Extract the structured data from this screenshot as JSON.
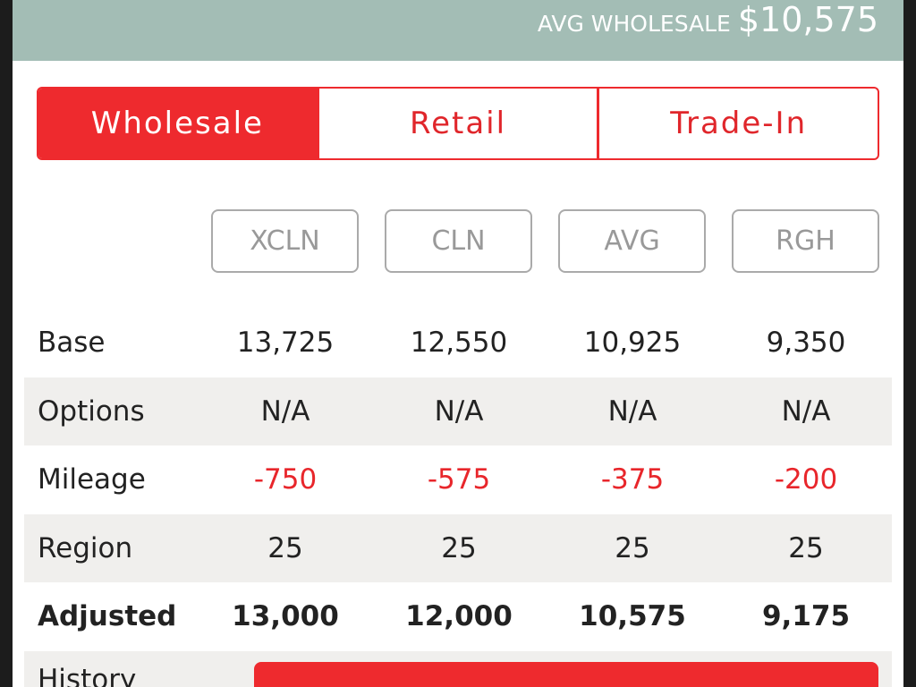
{
  "header": {
    "label": "AVG WHOLESALE",
    "value": "$10,575"
  },
  "tabs": [
    "Wholesale",
    "Retail",
    "Trade-In"
  ],
  "conditions": [
    "XCLN",
    "CLN",
    "AVG",
    "RGH"
  ],
  "rows": [
    {
      "label": "Base",
      "values": [
        "13,725",
        "12,550",
        "10,925",
        "9,350"
      ]
    },
    {
      "label": "Options",
      "values": [
        "N/A",
        "N/A",
        "N/A",
        "N/A"
      ]
    },
    {
      "label": "Mileage",
      "values": [
        "-750",
        "-575",
        "-375",
        "-200"
      ]
    },
    {
      "label": "Region",
      "values": [
        "25",
        "25",
        "25",
        "25"
      ]
    },
    {
      "label": "Adjusted",
      "values": [
        "13,000",
        "12,000",
        "10,575",
        "9,175"
      ]
    }
  ],
  "history_label": "History"
}
